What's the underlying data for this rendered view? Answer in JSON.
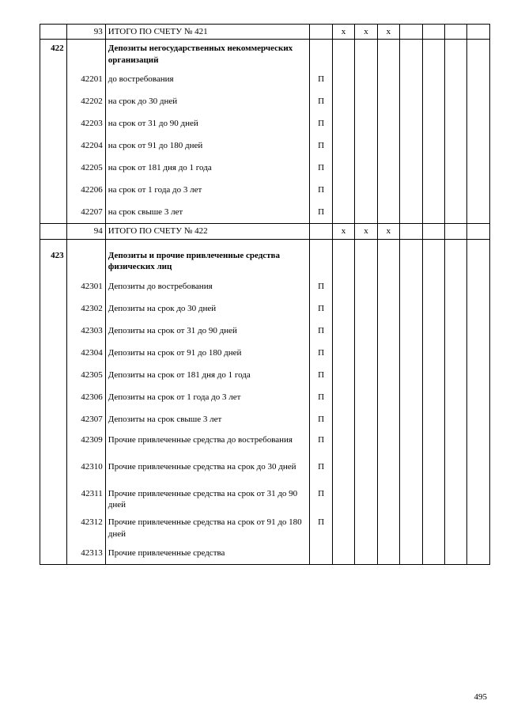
{
  "page_number": "495",
  "rows": [
    {
      "c1": "",
      "c2": "93",
      "c3": "ИТОГО ПО СЧЕТУ № 421",
      "c4": "",
      "c5": "x",
      "c6": "x",
      "c7": "x",
      "style": "",
      "cls": ""
    },
    {
      "c1": "422",
      "c2": "",
      "c3": "Депозиты негосударственных некоммерческих организаций",
      "c4": "",
      "c5": "",
      "c6": "",
      "c7": "",
      "style": "bold",
      "cls": "xtall",
      "mid": true
    },
    {
      "c1": "",
      "c2": "42201",
      "c3": "до востребования",
      "c4": "П",
      "c5": "",
      "c6": "",
      "c7": "",
      "style": "",
      "cls": "tall",
      "mid": true
    },
    {
      "c1": "",
      "c2": "42202",
      "c3": "на срок до 30  дней",
      "c4": "П",
      "c5": "",
      "c6": "",
      "c7": "",
      "style": "",
      "cls": "tall",
      "mid": true
    },
    {
      "c1": "",
      "c2": "42203",
      "c3": "на срок от 31 до 90 дней",
      "c4": "П",
      "c5": "",
      "c6": "",
      "c7": "",
      "style": "",
      "cls": "tall",
      "mid": true
    },
    {
      "c1": "",
      "c2": "42204",
      "c3": "на срок от 91 до 180 дней",
      "c4": "П",
      "c5": "",
      "c6": "",
      "c7": "",
      "style": "",
      "cls": "tall",
      "mid": true
    },
    {
      "c1": "",
      "c2": "42205",
      "c3": "на срок от 181 дня до 1 года",
      "c4": "П",
      "c5": "",
      "c6": "",
      "c7": "",
      "style": "",
      "cls": "tall",
      "mid": true
    },
    {
      "c1": "",
      "c2": "42206",
      "c3": "на срок от 1 года до 3 лет",
      "c4": "П",
      "c5": "",
      "c6": "",
      "c7": "",
      "style": "",
      "cls": "tall",
      "mid": true
    },
    {
      "c1": "",
      "c2": "42207",
      "c3": "на срок свыше 3 лет",
      "c4": "П",
      "c5": "",
      "c6": "",
      "c7": "",
      "style": "",
      "cls": "tall",
      "midlast": true
    },
    {
      "c1": "",
      "c2": "94",
      "c3": "ИТОГО ПО СЧЕТУ № 422",
      "c4": "",
      "c5": "x",
      "c6": "x",
      "c7": "x",
      "style": "",
      "cls": ""
    },
    {
      "c1": "423",
      "c2": "",
      "c3": "Депозиты и прочие привлеченные средства физических лиц",
      "c4": "",
      "c5": "",
      "c6": "",
      "c7": "",
      "style": "bold",
      "cls": "xtall",
      "mid": true,
      "gap": true
    },
    {
      "c1": "",
      "c2": "42301",
      "c3": "Депозиты до востребования",
      "c4": "П",
      "c5": "",
      "c6": "",
      "c7": "",
      "style": "",
      "cls": "tall",
      "mid": true
    },
    {
      "c1": "",
      "c2": "42302",
      "c3": "Депозиты на срок до 30 дней",
      "c4": "П",
      "c5": "",
      "c6": "",
      "c7": "",
      "style": "",
      "cls": "tall",
      "mid": true
    },
    {
      "c1": "",
      "c2": "42303",
      "c3": "Депозиты на срок от 31 до 90 дней",
      "c4": "П",
      "c5": "",
      "c6": "",
      "c7": "",
      "style": "",
      "cls": "tall",
      "mid": true
    },
    {
      "c1": "",
      "c2": "42304",
      "c3": "Депозиты на срок от 91 до 180 дней",
      "c4": "П",
      "c5": "",
      "c6": "",
      "c7": "",
      "style": "",
      "cls": "tall",
      "mid": true
    },
    {
      "c1": "",
      "c2": "42305",
      "c3": "Депозиты на срок от 181 дня до 1 года",
      "c4": "П",
      "c5": "",
      "c6": "",
      "c7": "",
      "style": "",
      "cls": "tall",
      "mid": true
    },
    {
      "c1": "",
      "c2": "42306",
      "c3": "Депозиты на срок от 1 года до 3 лет",
      "c4": "П",
      "c5": "",
      "c6": "",
      "c7": "",
      "style": "",
      "cls": "tall",
      "mid": true
    },
    {
      "c1": "",
      "c2": "42307",
      "c3": "Депозиты на срок свыше 3 лет",
      "c4": "П",
      "c5": "",
      "c6": "",
      "c7": "",
      "style": "",
      "cls": "tall",
      "mid": true
    },
    {
      "c1": "",
      "c2": "42309",
      "c3": "Прочие привлеченные средства до востребования",
      "c4": "П",
      "c5": "",
      "c6": "",
      "c7": "",
      "style": "",
      "cls": "xtall",
      "mid": true
    },
    {
      "c1": "",
      "c2": "42310",
      "c3": "Прочие привлеченные средства на срок до 30 дней",
      "c4": "П",
      "c5": "",
      "c6": "",
      "c7": "",
      "style": "",
      "cls": "xtall",
      "mid": true
    },
    {
      "c1": "",
      "c2": "42311",
      "c3": "Прочие привлеченные средства на срок от 31 до 90 дней",
      "c4": "П",
      "c5": "",
      "c6": "",
      "c7": "",
      "style": "",
      "cls": "xtall",
      "mid": true
    },
    {
      "c1": "",
      "c2": "42312",
      "c3": "Прочие привлеченные средства на срок от 91 до 180 дней",
      "c4": "П",
      "c5": "",
      "c6": "",
      "c7": "",
      "style": "",
      "cls": "xtall",
      "mid": true
    },
    {
      "c1": "",
      "c2": "42313",
      "c3": "Прочие привлеченные средства",
      "c4": "",
      "c5": "",
      "c6": "",
      "c7": "",
      "style": "",
      "cls": "tall",
      "midlast": true
    }
  ]
}
